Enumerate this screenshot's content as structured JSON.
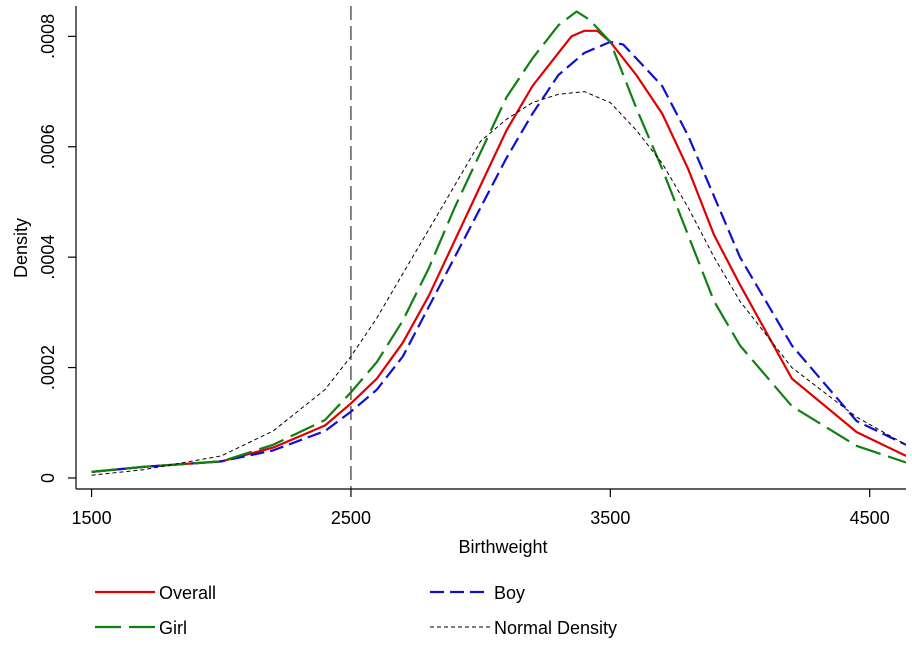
{
  "chart_data": {
    "type": "line",
    "title": "",
    "xlabel": "Birthweight",
    "ylabel": "Density",
    "xlim": [
      1440,
      4640
    ],
    "ylim": [
      -2e-05,
      0.000855
    ],
    "x_ticks": [
      1500,
      2500,
      3500,
      4500
    ],
    "x_tick_labels": [
      "1500",
      "2500",
      "3500",
      "4500"
    ],
    "y_ticks": [
      0,
      0.0002,
      0.0004,
      0.0006,
      0.0008
    ],
    "y_tick_labels": [
      "0",
      ".0002",
      ".0004",
      ".0006",
      ".0008"
    ],
    "grid": false,
    "legend_position": "bottom",
    "reference_line": {
      "axis": "x",
      "value": 2500
    },
    "series": [
      {
        "name": "Overall",
        "color": "#e00000",
        "x": [
          1500,
          1700,
          2000,
          2200,
          2400,
          2500,
          2600,
          2700,
          2800,
          2900,
          3000,
          3100,
          3200,
          3300,
          3350,
          3400,
          3450,
          3500,
          3600,
          3700,
          3800,
          3900,
          4000,
          4200,
          4450,
          4640
        ],
        "y": [
          1.1e-05,
          2e-05,
          3e-05,
          5.5e-05,
          9.5e-05,
          0.000135,
          0.00018,
          0.000245,
          0.00033,
          0.00043,
          0.00053,
          0.00063,
          0.00071,
          0.00077,
          0.0008,
          0.00081,
          0.00081,
          0.00079,
          0.00073,
          0.00066,
          0.00056,
          0.00044,
          0.00035,
          0.00018,
          8.3e-05,
          4e-05
        ]
      },
      {
        "name": "Boy",
        "color": "#1010d0",
        "x": [
          1500,
          1700,
          2000,
          2200,
          2400,
          2500,
          2600,
          2700,
          2800,
          2900,
          3000,
          3100,
          3200,
          3300,
          3400,
          3450,
          3500,
          3550,
          3600,
          3700,
          3800,
          3900,
          4000,
          4200,
          4450,
          4640
        ],
        "y": [
          1.1e-05,
          2e-05,
          3e-05,
          5e-05,
          8.5e-05,
          0.00012,
          0.00016,
          0.00022,
          0.00031,
          0.0004,
          0.00049,
          0.00058,
          0.00066,
          0.00073,
          0.00077,
          0.00078,
          0.00079,
          0.000785,
          0.00076,
          0.00071,
          0.00062,
          0.00051,
          0.0004,
          0.00024,
          0.000103,
          6e-05
        ]
      },
      {
        "name": "Girl",
        "color": "#108010",
        "x": [
          1500,
          1700,
          2000,
          2200,
          2400,
          2500,
          2600,
          2700,
          2800,
          2900,
          3000,
          3100,
          3200,
          3300,
          3370,
          3420,
          3500,
          3600,
          3700,
          3800,
          3900,
          4000,
          4200,
          4450,
          4640
        ],
        "y": [
          1.1e-05,
          2e-05,
          3e-05,
          6e-05,
          0.000105,
          0.000155,
          0.00021,
          0.000285,
          0.00038,
          0.00049,
          0.00059,
          0.00069,
          0.00076,
          0.00082,
          0.000845,
          0.00083,
          0.00079,
          0.00067,
          0.00056,
          0.00044,
          0.00032,
          0.00024,
          0.00013,
          5.8e-05,
          2.8e-05
        ]
      },
      {
        "name": "Normal Density",
        "color": "#000000",
        "x": [
          1500,
          1700,
          2000,
          2200,
          2400,
          2500,
          2600,
          2700,
          2800,
          2900,
          3000,
          3100,
          3200,
          3300,
          3400,
          3500,
          3600,
          3700,
          3800,
          3900,
          4000,
          4200,
          4450,
          4640
        ],
        "y": [
          5e-06,
          1.5e-05,
          4e-05,
          8.5e-05,
          0.00016,
          0.00022,
          0.00029,
          0.00037,
          0.00045,
          0.00053,
          0.00061,
          0.00065,
          0.00068,
          0.000695,
          0.0007,
          0.00068,
          0.00063,
          0.00057,
          0.00049,
          0.0004,
          0.00032,
          0.0002,
          0.00011,
          6e-05
        ]
      }
    ]
  }
}
